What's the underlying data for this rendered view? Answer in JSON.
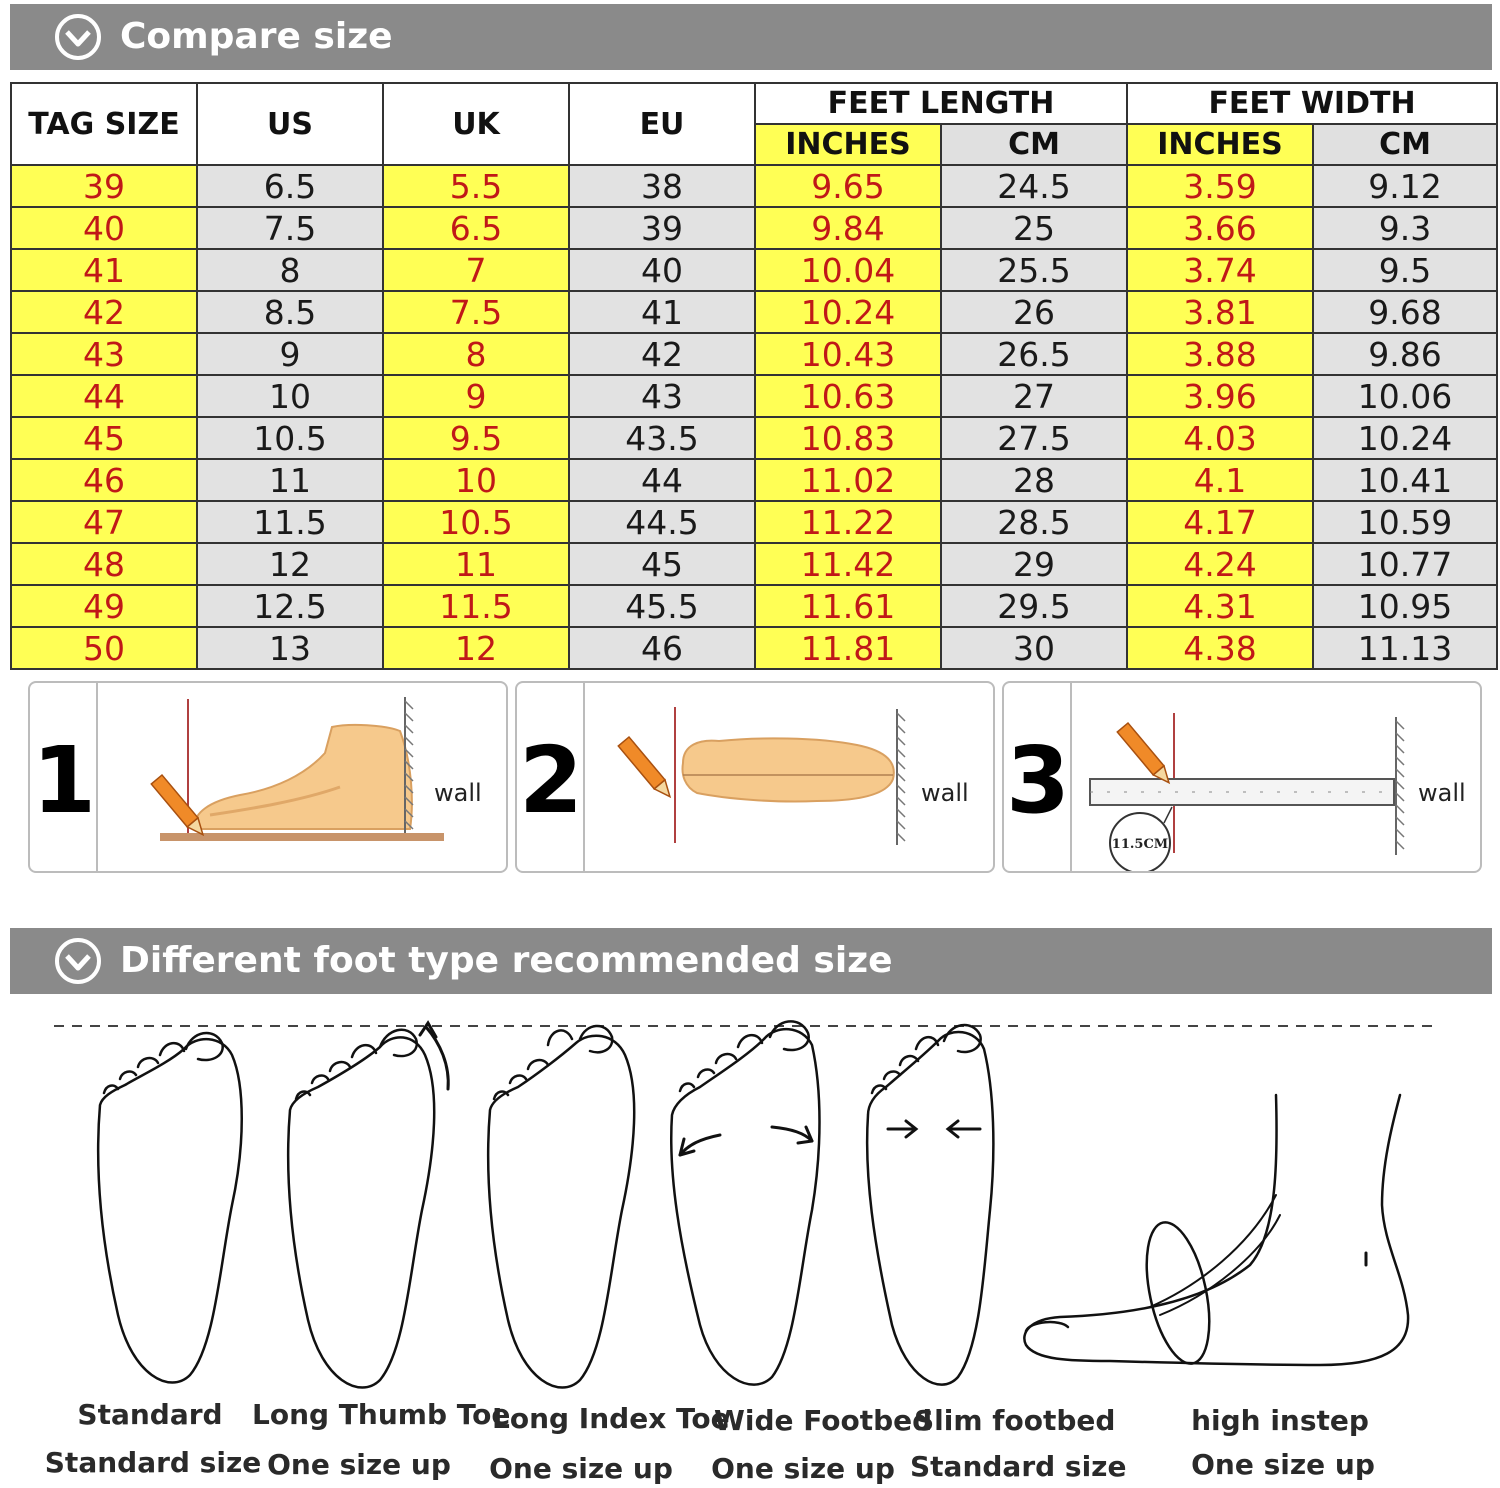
{
  "banners": {
    "compare_title": "Compare size",
    "foot_type_title": "Different foot type recommended size"
  },
  "table": {
    "headers": {
      "tag_size": "TAG SIZE",
      "us": "US",
      "uk": "UK",
      "eu": "EU",
      "feet_length": "FEET LENGTH",
      "feet_width": "FEET WIDTH",
      "length_inches": "INCHES",
      "length_cm": "CM",
      "width_inches": "INCHES",
      "width_cm": "CM"
    },
    "rows": [
      [
        "39",
        "6.5",
        "5.5",
        "38",
        "9.65",
        "24.5",
        "3.59",
        "9.12"
      ],
      [
        "40",
        "7.5",
        "6.5",
        "39",
        "9.84",
        "25",
        "3.66",
        "9.3"
      ],
      [
        "41",
        "8",
        "7",
        "40",
        "10.04",
        "25.5",
        "3.74",
        "9.5"
      ],
      [
        "42",
        "8.5",
        "7.5",
        "41",
        "10.24",
        "26",
        "3.81",
        "9.68"
      ],
      [
        "43",
        "9",
        "8",
        "42",
        "10.43",
        "26.5",
        "3.88",
        "9.86"
      ],
      [
        "44",
        "10",
        "9",
        "43",
        "10.63",
        "27",
        "3.96",
        "10.06"
      ],
      [
        "45",
        "10.5",
        "9.5",
        "43.5",
        "10.83",
        "27.5",
        "4.03",
        "10.24"
      ],
      [
        "46",
        "11",
        "10",
        "44",
        "11.02",
        "28",
        "4.1",
        "10.41"
      ],
      [
        "47",
        "11.5",
        "10.5",
        "44.5",
        "11.22",
        "28.5",
        "4.17",
        "10.59"
      ],
      [
        "48",
        "12",
        "11",
        "45",
        "11.42",
        "29",
        "4.24",
        "10.77"
      ],
      [
        "49",
        "12.5",
        "11.5",
        "45.5",
        "11.61",
        "29.5",
        "4.31",
        "10.95"
      ],
      [
        "50",
        "13",
        "12",
        "46",
        "11.81",
        "30",
        "4.38",
        "11.13"
      ]
    ],
    "highlight_color": "#ffff55",
    "grey_color": "#e2e2e2",
    "highlight_text_color": "#c01818"
  },
  "steps": [
    {
      "number": "1",
      "wall_label": "wall"
    },
    {
      "number": "2",
      "wall_label": "wall"
    },
    {
      "number": "3",
      "wall_label": "wall",
      "ruler_label": "11.5CM"
    }
  ],
  "foot_types": [
    {
      "name": "Standard",
      "recommendation": "Standard size"
    },
    {
      "name": "Long Thumb Toe",
      "recommendation": "One size up"
    },
    {
      "name": "Long Index Toe",
      "recommendation": "One size up"
    },
    {
      "name": "Wide Footbed",
      "recommendation": "One size up"
    },
    {
      "name": "Slim footbed",
      "recommendation": "Standard size"
    },
    {
      "name": "high instep",
      "recommendation": "One size up"
    }
  ]
}
